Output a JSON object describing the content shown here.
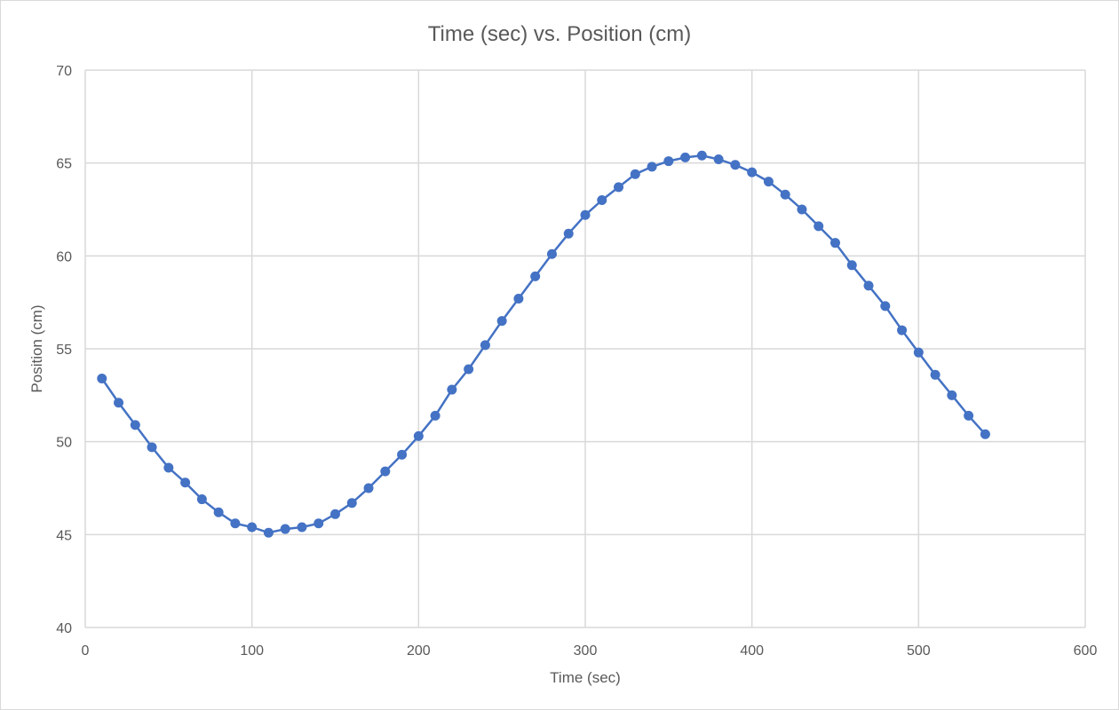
{
  "chart_data": {
    "type": "scatter",
    "title": "Time (sec) vs. Position (cm)",
    "xlabel": "Time (sec)",
    "ylabel": "Position (cm)",
    "xlim": [
      0,
      600
    ],
    "ylim": [
      40,
      70
    ],
    "xticks": [
      "0",
      "100",
      "200",
      "300",
      "400",
      "500",
      "600"
    ],
    "yticks": [
      "40",
      "45",
      "50",
      "55",
      "60",
      "65",
      "70"
    ],
    "grid": true,
    "legend": "none",
    "line_color": "#4472c4",
    "series": [
      {
        "x": [
          10,
          20,
          30,
          40,
          50,
          60,
          70,
          80,
          90,
          100,
          110,
          120,
          130,
          140,
          150,
          160,
          170,
          180,
          190,
          200,
          210,
          220,
          230,
          240,
          250,
          260,
          270,
          280,
          290,
          300,
          310,
          320,
          330,
          340,
          350,
          360,
          370,
          380,
          390,
          400,
          410,
          420,
          430,
          440,
          450,
          460,
          470,
          480,
          490,
          500,
          510,
          520,
          530,
          540
        ],
        "y": [
          53.4,
          52.1,
          50.9,
          49.7,
          48.6,
          47.8,
          46.9,
          46.2,
          45.6,
          45.4,
          45.1,
          45.3,
          45.4,
          45.6,
          46.1,
          46.7,
          47.5,
          48.4,
          49.3,
          50.3,
          51.4,
          52.8,
          53.9,
          55.2,
          56.5,
          57.7,
          58.9,
          60.1,
          61.2,
          62.2,
          63.0,
          63.7,
          64.4,
          64.8,
          65.1,
          65.3,
          65.4,
          65.2,
          64.9,
          64.5,
          64.0,
          63.3,
          62.5,
          61.6,
          60.7,
          59.5,
          58.4,
          57.3,
          56.0,
          54.8,
          53.6,
          52.5,
          51.4,
          50.4
        ]
      }
    ]
  }
}
